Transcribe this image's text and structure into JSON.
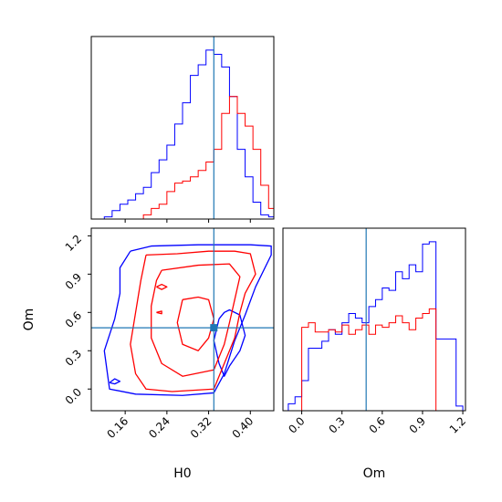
{
  "chart_data": [
    {
      "panel": "H0 marginal",
      "type": "histogram",
      "x_ticks": [
        0.16,
        0.24,
        0.32,
        0.4
      ],
      "xlim": [
        0.095,
        0.445
      ],
      "truth": 0.33,
      "series": [
        {
          "color": "#0000ff",
          "bins": [
            0.09,
            0.105,
            0.12,
            0.135,
            0.15,
            0.165,
            0.18,
            0.195,
            0.21,
            0.225,
            0.24,
            0.255,
            0.27,
            0.285,
            0.3,
            0.315,
            0.33,
            0.345,
            0.36,
            0.375,
            0.39,
            0.405,
            0.42,
            0.435,
            0.45
          ],
          "values": [
            0,
            0,
            0.01,
            0.04,
            0.07,
            0.09,
            0.12,
            0.15,
            0.22,
            0.28,
            0.35,
            0.45,
            0.55,
            0.68,
            0.73,
            0.8,
            0.78,
            0.72,
            0.58,
            0.33,
            0.2,
            0.08,
            0.02,
            0.01
          ]
        },
        {
          "color": "#ff0000",
          "bins": [
            0.09,
            0.105,
            0.12,
            0.135,
            0.15,
            0.165,
            0.18,
            0.195,
            0.21,
            0.225,
            0.24,
            0.255,
            0.27,
            0.285,
            0.3,
            0.315,
            0.33,
            0.345,
            0.36,
            0.375,
            0.39,
            0.405,
            0.42,
            0.435,
            0.45
          ],
          "values": [
            0,
            0,
            0,
            0,
            0,
            0,
            0,
            0.02,
            0.05,
            0.07,
            0.13,
            0.17,
            0.18,
            0.2,
            0.23,
            0.27,
            0.33,
            0.5,
            0.58,
            0.5,
            0.44,
            0.33,
            0.16,
            0.05
          ]
        }
      ]
    },
    {
      "panel": "H0 vs Om joint",
      "type": "contour",
      "xlabel": "H0",
      "ylabel": "Om",
      "x_ticks": [
        0.16,
        0.24,
        0.32,
        0.4
      ],
      "y_ticks": [
        0.0,
        0.3,
        0.6,
        0.9,
        1.2
      ],
      "xlim": [
        0.095,
        0.445
      ],
      "ylim": [
        -0.17,
        1.26
      ],
      "truth": {
        "x": 0.33,
        "y": 0.48
      },
      "series": [
        {
          "color": "#0000ff",
          "levels": [
            [
              [
                0.17,
                1.08
              ],
              [
                0.21,
                1.12
              ],
              [
                0.3,
                1.13
              ],
              [
                0.4,
                1.13
              ],
              [
                0.44,
                1.12
              ],
              [
                0.44,
                1.05
              ],
              [
                0.41,
                0.8
              ],
              [
                0.39,
                0.58
              ],
              [
                0.37,
                0.38
              ],
              [
                0.35,
                0.12
              ],
              [
                0.33,
                -0.03
              ],
              [
                0.27,
                -0.05
              ],
              [
                0.18,
                -0.04
              ],
              [
                0.13,
                0.0
              ],
              [
                0.12,
                0.3
              ],
              [
                0.14,
                0.55
              ],
              [
                0.15,
                0.75
              ],
              [
                0.15,
                0.95
              ],
              [
                0.17,
                1.08
              ]
            ],
            [
              [
                0.34,
                0.55
              ],
              [
                0.35,
                0.6
              ],
              [
                0.36,
                0.62
              ],
              [
                0.38,
                0.58
              ],
              [
                0.39,
                0.42
              ],
              [
                0.38,
                0.3
              ],
              [
                0.36,
                0.18
              ],
              [
                0.35,
                0.1
              ],
              [
                0.34,
                0.2
              ],
              [
                0.33,
                0.38
              ],
              [
                0.34,
                0.55
              ]
            ],
            [
              [
                0.13,
                0.05
              ],
              [
                0.14,
                0.08
              ],
              [
                0.15,
                0.06
              ],
              [
                0.14,
                0.04
              ],
              [
                0.13,
                0.05
              ]
            ]
          ]
        },
        {
          "color": "#ff0000",
          "levels": [
            [
              [
                0.2,
                1.05
              ],
              [
                0.26,
                1.06
              ],
              [
                0.32,
                1.08
              ],
              [
                0.37,
                1.08
              ],
              [
                0.4,
                1.06
              ],
              [
                0.41,
                0.9
              ],
              [
                0.39,
                0.75
              ],
              [
                0.38,
                0.6
              ],
              [
                0.37,
                0.4
              ],
              [
                0.35,
                0.2
              ],
              [
                0.33,
                0.0
              ],
              [
                0.25,
                -0.02
              ],
              [
                0.2,
                0.0
              ],
              [
                0.18,
                0.12
              ],
              [
                0.17,
                0.35
              ],
              [
                0.18,
                0.6
              ],
              [
                0.19,
                0.85
              ],
              [
                0.2,
                1.05
              ]
            ],
            [
              [
                0.23,
                0.93
              ],
              [
                0.3,
                0.97
              ],
              [
                0.36,
                0.98
              ],
              [
                0.38,
                0.88
              ],
              [
                0.37,
                0.7
              ],
              [
                0.36,
                0.52
              ],
              [
                0.35,
                0.35
              ],
              [
                0.33,
                0.15
              ],
              [
                0.27,
                0.1
              ],
              [
                0.23,
                0.2
              ],
              [
                0.21,
                0.4
              ],
              [
                0.21,
                0.65
              ],
              [
                0.22,
                0.85
              ],
              [
                0.23,
                0.93
              ]
            ],
            [
              [
                0.27,
                0.7
              ],
              [
                0.3,
                0.72
              ],
              [
                0.32,
                0.7
              ],
              [
                0.33,
                0.55
              ],
              [
                0.32,
                0.4
              ],
              [
                0.3,
                0.3
              ],
              [
                0.27,
                0.35
              ],
              [
                0.26,
                0.52
              ],
              [
                0.27,
                0.7
              ]
            ],
            [
              [
                0.22,
                0.8
              ],
              [
                0.23,
                0.82
              ],
              [
                0.24,
                0.8
              ],
              [
                0.23,
                0.78
              ],
              [
                0.22,
                0.8
              ]
            ],
            [
              [
                0.22,
                0.6
              ],
              [
                0.23,
                0.61
              ],
              [
                0.23,
                0.59
              ],
              [
                0.22,
                0.6
              ]
            ]
          ]
        }
      ]
    },
    {
      "panel": "Om marginal",
      "type": "histogram",
      "xlabel": "Om",
      "x_ticks": [
        0.0,
        0.3,
        0.6,
        0.9,
        1.2
      ],
      "xlim": [
        -0.14,
        1.22
      ],
      "truth": 0.48,
      "series": [
        {
          "color": "#0000ff",
          "bins": [
            -0.1,
            -0.05,
            0.0,
            0.05,
            0.1,
            0.15,
            0.2,
            0.25,
            0.3,
            0.35,
            0.4,
            0.45,
            0.5,
            0.55,
            0.6,
            0.65,
            0.7,
            0.75,
            0.8,
            0.85,
            0.9,
            0.95,
            1.0,
            1.05,
            1.1,
            1.15,
            1.2
          ],
          "values": [
            0.03,
            0.06,
            0.13,
            0.27,
            0.27,
            0.3,
            0.35,
            0.33,
            0.38,
            0.42,
            0.4,
            0.38,
            0.45,
            0.48,
            0.53,
            0.52,
            0.6,
            0.57,
            0.63,
            0.6,
            0.72,
            0.73,
            0.31,
            0.31,
            0.31,
            0.02
          ]
        },
        {
          "color": "#ff0000",
          "bins": [
            -0.1,
            -0.05,
            0.0,
            0.05,
            0.1,
            0.15,
            0.2,
            0.25,
            0.3,
            0.35,
            0.4,
            0.45,
            0.5,
            0.55,
            0.6,
            0.65,
            0.7,
            0.75,
            0.8,
            0.85,
            0.9,
            0.95,
            1.0,
            1.05,
            1.1,
            1.15,
            1.2
          ],
          "values": [
            0,
            0,
            0.36,
            0.38,
            0.34,
            0.34,
            0.35,
            0.34,
            0.37,
            0.33,
            0.35,
            0.37,
            0.33,
            0.37,
            0.36,
            0.38,
            0.41,
            0.38,
            0.35,
            0.4,
            0.42,
            0.44,
            0,
            0,
            0,
            0
          ]
        }
      ]
    }
  ]
}
